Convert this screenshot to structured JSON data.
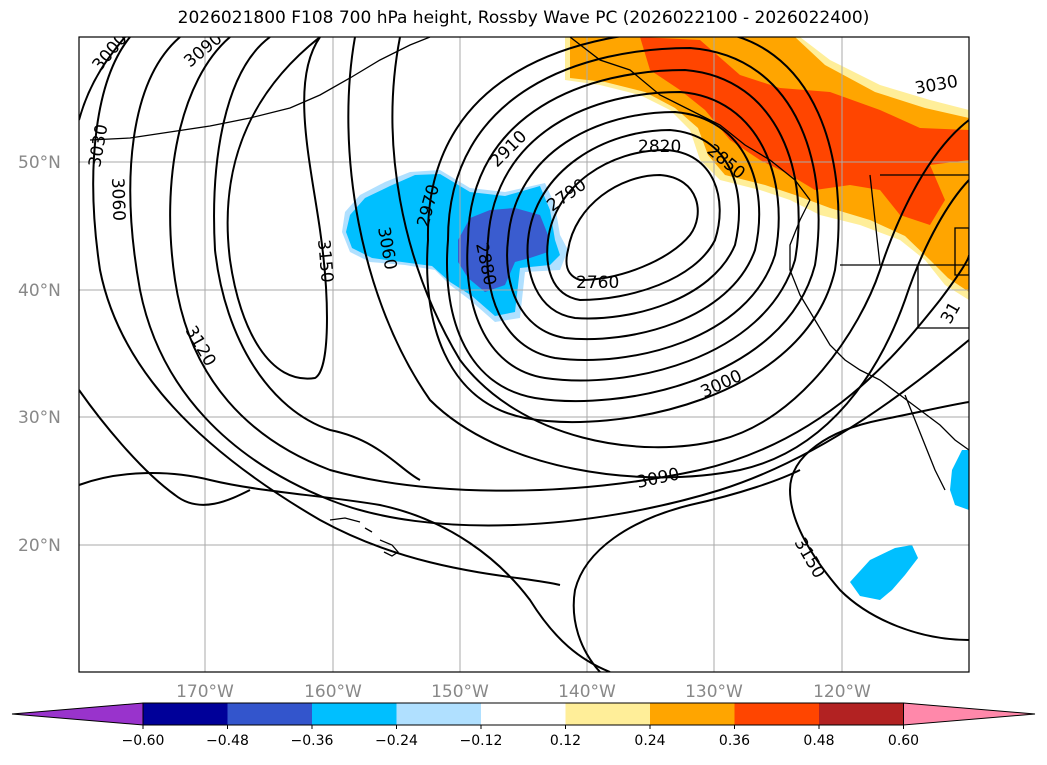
{
  "title": "2026021800 F108 700 hPa height, Rossby Wave PC (2026022100 - 2026022400)",
  "colors": {
    "shade_pos_1": "#ffee99",
    "shade_pos_2": "#ffa500",
    "shade_pos_3": "#ff4500",
    "shade_neg_1": "#b0e0ff",
    "shade_neg_2": "#00bfff",
    "shade_neg_3": "#3a5ccf",
    "contour": "#000000",
    "grid": "#aaaaaa"
  },
  "map": {
    "lat_labels": [
      "50°N",
      "40°N",
      "30°N",
      "20°N"
    ],
    "lon_labels": [
      "170°W",
      "160°W",
      "150°W",
      "140°W",
      "130°W",
      "120°W"
    ],
    "contour_labels": [
      "3000",
      "3090",
      "3030",
      "3060",
      "3150",
      "3120",
      "3060",
      "2970",
      "2910",
      "2880",
      "2820",
      "2850",
      "2790",
      "2760",
      "3000",
      "3090",
      "3150",
      "3030",
      "31"
    ]
  },
  "colorbar": {
    "ticks": [
      "−0.60",
      "−0.48",
      "−0.36",
      "−0.24",
      "−0.12",
      "0.12",
      "0.24",
      "0.36",
      "0.48",
      "0.60"
    ],
    "colors": [
      "#9933cc",
      "#000099",
      "#3355cc",
      "#00bfff",
      "#b0e0ff",
      "#ffffff",
      "#ffee99",
      "#ffa500",
      "#ff4500",
      "#b22222",
      "#ff88aa"
    ]
  }
}
